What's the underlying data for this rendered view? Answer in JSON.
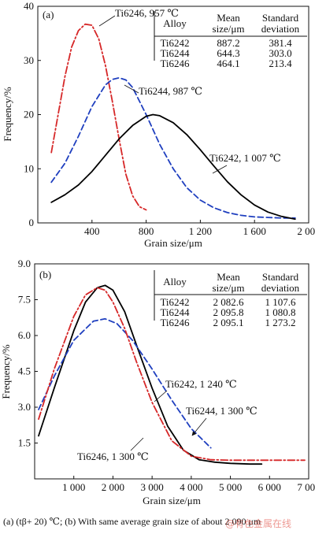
{
  "chart_data": [
    {
      "type": "line",
      "panel_label": "(a)",
      "xlabel": "Grain size/μm",
      "ylabel": "Frequency/%",
      "xlim": [
        0,
        2000
      ],
      "ylim": [
        0,
        40
      ],
      "x_ticks": [
        400,
        800,
        1200,
        1600,
        2000
      ],
      "x_tick_labels": [
        "400",
        "800",
        "1 200",
        "1 600",
        "2 000"
      ],
      "y_ticks": [
        0,
        10,
        20,
        30,
        40
      ],
      "y_tick_labels": [
        "0",
        "10",
        "20",
        "30",
        "40"
      ],
      "grid": false,
      "series": [
        {
          "name": "Ti6246, 957 ℃",
          "label": "Ti6246, 957 ℃",
          "color": "#d62728",
          "style": "dashdot",
          "x": [
            100,
            150,
            200,
            250,
            300,
            350,
            400,
            450,
            500,
            550,
            600,
            650,
            700,
            750,
            800
          ],
          "y": [
            13,
            20,
            27,
            32.5,
            35.5,
            36.7,
            36.5,
            34,
            29,
            22.5,
            15.5,
            9,
            5,
            3,
            2.4
          ]
        },
        {
          "name": "Ti6244, 987 ℃",
          "label": "Ti6244, 987 ℃",
          "color": "#1f3fbf",
          "style": "dashed",
          "x": [
            100,
            200,
            300,
            400,
            500,
            550,
            600,
            650,
            700,
            800,
            900,
            1000,
            1100,
            1200,
            1300,
            1400,
            1500,
            1600,
            1700,
            1800,
            1900
          ],
          "y": [
            7.5,
            11,
            16,
            21.5,
            25.5,
            26.5,
            26.8,
            26.4,
            25,
            20,
            14.5,
            10,
            6.5,
            4.2,
            2.8,
            1.9,
            1.4,
            1.1,
            1,
            0.9,
            0.9
          ]
        },
        {
          "name": "Ti6242, 1 007 ℃",
          "label": "Ti6242, 1 007 ℃",
          "color": "#000000",
          "style": "solid",
          "x": [
            100,
            200,
            300,
            400,
            500,
            600,
            700,
            800,
            850,
            900,
            1000,
            1100,
            1200,
            1300,
            1400,
            1500,
            1600,
            1700,
            1800,
            1900
          ],
          "y": [
            3.8,
            5.2,
            7,
            9.5,
            12.5,
            15.5,
            18,
            19.7,
            20,
            19.8,
            18.5,
            16.3,
            13.5,
            10.5,
            7.6,
            5.2,
            3.3,
            2,
            1.2,
            0.7
          ]
        }
      ],
      "table": {
        "header_col1": "Alloy",
        "header_col2_line1": "Mean",
        "header_col2_line2": "size/μm",
        "header_col3_line1": "Standard",
        "header_col3_line2": "deviation",
        "rows": [
          [
            "Ti6242",
            "887.2",
            "381.4"
          ],
          [
            "Ti6244",
            "644.3",
            "303.0"
          ],
          [
            "Ti6246",
            "464.1",
            "213.4"
          ]
        ]
      }
    },
    {
      "type": "line",
      "panel_label": "(b)",
      "xlabel": "Grain size/μm",
      "ylabel": "Frequency/%",
      "xlim": [
        0,
        7000
      ],
      "ylim": [
        0,
        9
      ],
      "x_ticks": [
        1000,
        2000,
        3000,
        4000,
        5000,
        6000,
        7000
      ],
      "x_tick_labels": [
        "1 000",
        "2 000",
        "3 000",
        "4 000",
        "5 000",
        "6 000",
        "7 000"
      ],
      "y_ticks": [
        1.5,
        3.0,
        4.5,
        6.0,
        7.5,
        9.0
      ],
      "y_tick_labels": [
        "1.5",
        "3.0",
        "4.5",
        "6.0",
        "7.5",
        "9.0"
      ],
      "grid": false,
      "series": [
        {
          "name": "Ti6242, 1 240 ℃",
          "label": "Ti6242, 1 240 ℃",
          "color": "#000000",
          "style": "solid",
          "x": [
            100,
            500,
            1000,
            1300,
            1600,
            1800,
            2000,
            2300,
            2600,
            3000,
            3400,
            3800,
            4200,
            4600,
            5000,
            5500,
            5800
          ],
          "y": [
            1.8,
            3.8,
            6.2,
            7.4,
            8.0,
            8.1,
            7.9,
            7.0,
            5.6,
            3.8,
            2.2,
            1.2,
            0.8,
            0.7,
            0.65,
            0.62,
            0.62
          ]
        },
        {
          "name": "Ti6244, 1 300 ℃",
          "label": "Ti6244, 1 300 ℃",
          "color": "#1f3fbf",
          "style": "dashed",
          "x": [
            100,
            500,
            1000,
            1500,
            1800,
            2100,
            2500,
            3000,
            3500,
            4000,
            4500
          ],
          "y": [
            2.9,
            4.3,
            5.8,
            6.6,
            6.7,
            6.5,
            5.8,
            4.6,
            3.3,
            2.1,
            1.3
          ]
        },
        {
          "name": "Ti6246, 1 300 ℃",
          "label": "Ti6246, 1 300 ℃",
          "color": "#d62728",
          "style": "dashdot",
          "x": [
            100,
            500,
            1000,
            1300,
            1600,
            1800,
            2000,
            2300,
            2600,
            3000,
            3500,
            4000,
            4500,
            5000,
            6000,
            6900
          ],
          "y": [
            2.5,
            4.6,
            6.8,
            7.7,
            8.0,
            7.9,
            7.4,
            6.3,
            4.9,
            3.2,
            1.6,
            0.95,
            0.8,
            0.78,
            0.78,
            0.78
          ]
        }
      ],
      "table": {
        "header_col1": "Alloy",
        "header_col2_line1": "Mean",
        "header_col2_line2": "size/μm",
        "header_col3_line1": "Standard",
        "header_col3_line2": "deviation",
        "rows": [
          [
            "Ti6242",
            "2 082.6",
            "1 107.6"
          ],
          [
            "Ti6244",
            "2 095.8",
            "1 080.8"
          ],
          [
            "Ti6246",
            "2 095.1",
            "1 273.2"
          ]
        ]
      }
    }
  ],
  "caption": "(a) (tβ+ 20) ℃; (b) With same average grain size of about 2 090 μm",
  "watermark": "@有色金属在线"
}
